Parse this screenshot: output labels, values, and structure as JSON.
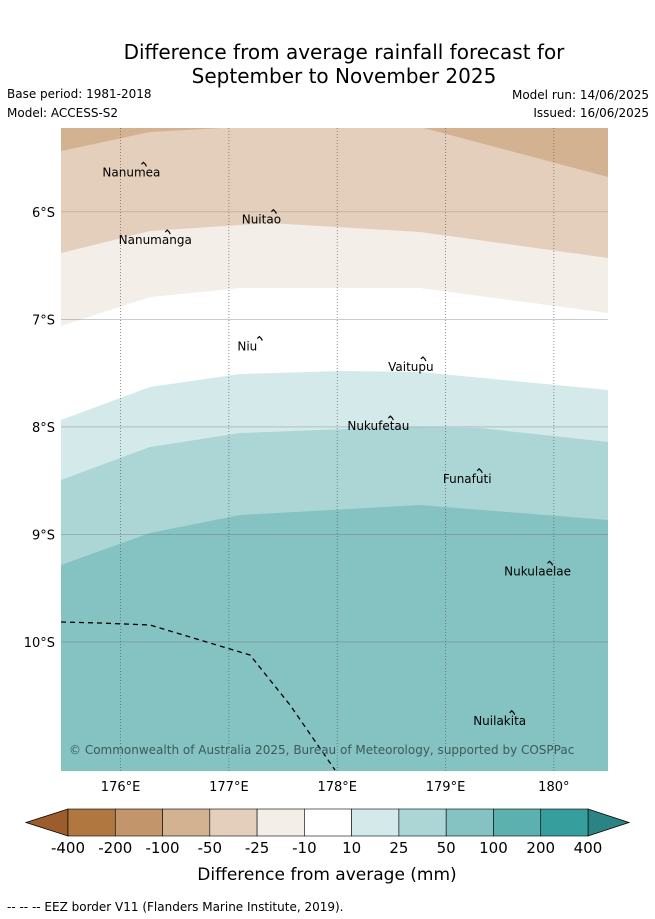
{
  "title_line1": "Difference from average rainfall forecast for",
  "title_line2": "September to November 2025",
  "base_period": "Base period: 1981-2018",
  "model": "Model: ACCESS-S2",
  "model_run": "Model run: 14/06/2025",
  "issued": "Issued: 16/06/2025",
  "copyright": "© Commonwealth of Australia 2025, Bureau of Meteorology, supported by COSPPac",
  "footer_note": "-- -- -- EEZ border V11 (Flanders Marine Institute, 2019).",
  "map": {
    "lon_range": [
      175.45,
      180.5
    ],
    "lat_range": [
      -5.22,
      -11.2
    ],
    "lon_ticks": [
      {
        "value": 176,
        "label": "176°E"
      },
      {
        "value": 177,
        "label": "177°E"
      },
      {
        "value": 178,
        "label": "178°E"
      },
      {
        "value": 179,
        "label": "179°E"
      },
      {
        "value": 180,
        "label": "180°"
      }
    ],
    "lat_ticks": [
      {
        "value": -6,
        "label": "6°S"
      },
      {
        "value": -7,
        "label": "7°S"
      },
      {
        "value": -8,
        "label": "8°S"
      },
      {
        "value": -9,
        "label": "9°S"
      },
      {
        "value": -10,
        "label": "10°S"
      }
    ],
    "islands": [
      {
        "name": "Nanumea",
        "lon": 176.1,
        "lat": -5.67
      },
      {
        "name": "Nuitao",
        "lon": 177.3,
        "lat": -6.11
      },
      {
        "name": "Nanumanga",
        "lon": 176.32,
        "lat": -6.3
      },
      {
        "name": "Niu",
        "lon": 177.17,
        "lat": -7.29
      },
      {
        "name": "Vaitupu",
        "lon": 178.68,
        "lat": -7.48
      },
      {
        "name": "Nukufetau",
        "lon": 178.38,
        "lat": -8.03
      },
      {
        "name": "Funafuti",
        "lon": 179.2,
        "lat": -8.52
      },
      {
        "name": "Nukulaelae",
        "lon": 179.85,
        "lat": -9.38
      },
      {
        "name": "Nuilakita",
        "lon": 179.5,
        "lat": -10.77
      }
    ]
  },
  "colorbar": {
    "label": "Difference from average (mm)",
    "ticks": [
      "-400",
      "-200",
      "-100",
      "-50",
      "-25",
      "-10",
      "10",
      "25",
      "50",
      "100",
      "200",
      "400"
    ],
    "colors": [
      "#b07840",
      "#c3956a",
      "#d3b292",
      "#e4cfbd",
      "#f3eee8",
      "#ffffff",
      "#d4e9e9",
      "#acd6d6",
      "#84c3c2",
      "#5cb0ae",
      "#369f9d"
    ],
    "under_color": "#9c5c2c",
    "over_color": "#2b8383"
  }
}
